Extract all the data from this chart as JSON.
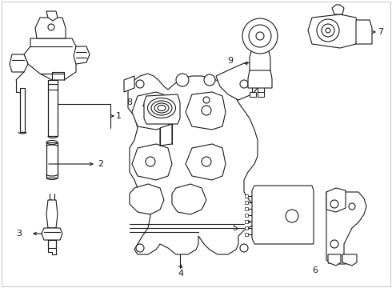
{
  "bg_color": "#ffffff",
  "line_color": "#1a1a1a",
  "fig_width": 4.9,
  "fig_height": 3.6,
  "dpi": 100,
  "border_color": "#cccccc"
}
